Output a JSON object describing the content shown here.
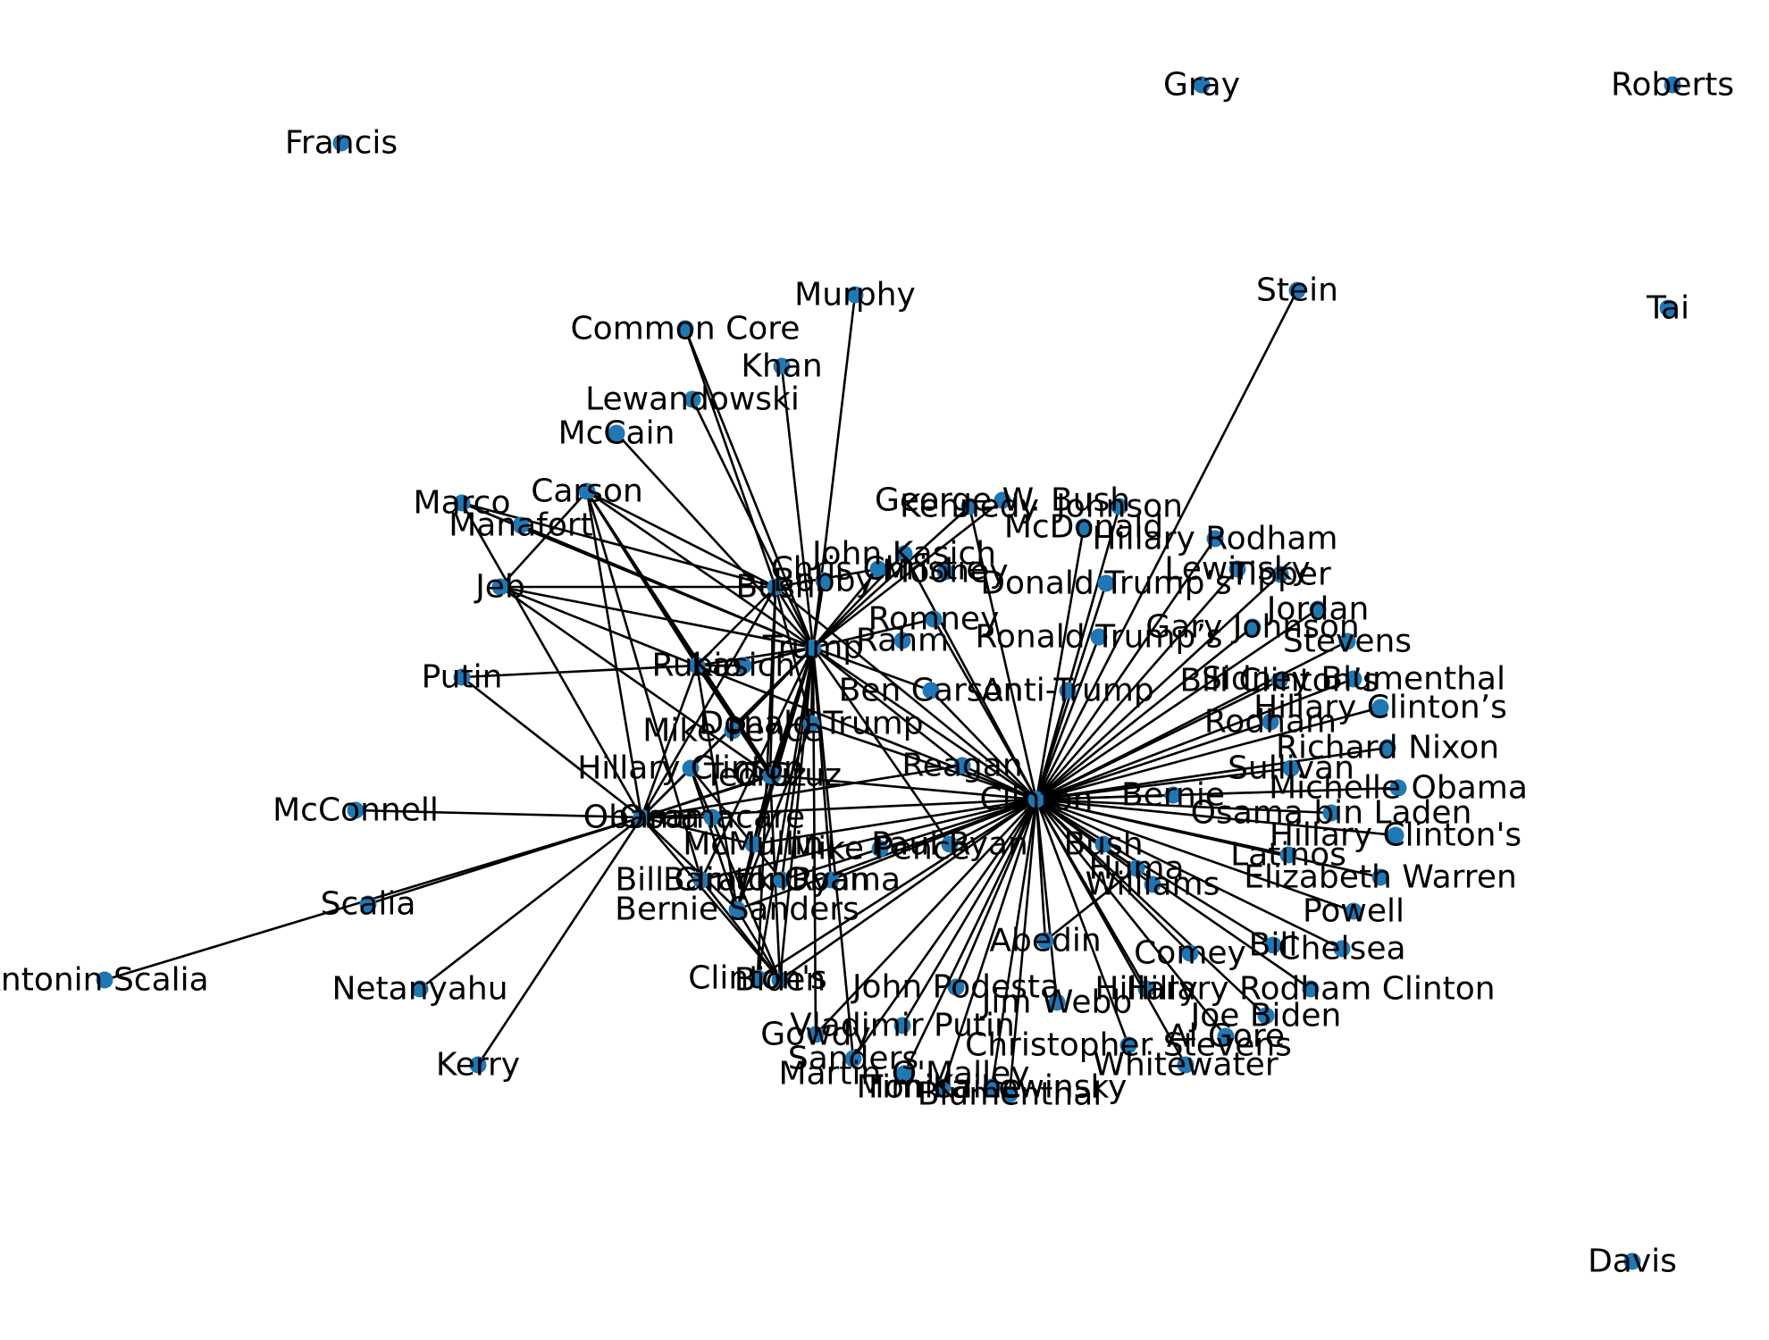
{
  "colors": {
    "node": "#1f77b4",
    "edge": "#000000",
    "text": "#000000"
  },
  "nodes": [
    {
      "id": "Clinton",
      "label": "Clinton"
    },
    {
      "id": "Trump",
      "label": "Trump"
    },
    {
      "id": "Obama",
      "label": "Obama"
    },
    {
      "id": "Bush",
      "label": "Bush"
    },
    {
      "id": "Rubio",
      "label": "Rubio"
    },
    {
      "id": "Cruz",
      "label": "Cruz"
    },
    {
      "id": "Carson",
      "label": "Carson"
    },
    {
      "id": "Kasich",
      "label": "Kasich"
    },
    {
      "id": "Marco",
      "label": "Marco"
    },
    {
      "id": "Manafort",
      "label": "Manafort"
    },
    {
      "id": "Jeb",
      "label": "Jeb"
    },
    {
      "id": "Putin",
      "label": "Putin"
    },
    {
      "id": "McConnell",
      "label": "McConnell"
    },
    {
      "id": "Scalia",
      "label": "Scalia"
    },
    {
      "id": "Antonin Scalia",
      "label": "Antonin Scalia"
    },
    {
      "id": "Netanyahu",
      "label": "Netanyahu"
    },
    {
      "id": "Kerry",
      "label": "Kerry"
    },
    {
      "id": "Francis",
      "label": "Francis"
    },
    {
      "id": "Gray",
      "label": "Gray"
    },
    {
      "id": "Roberts",
      "label": "Roberts"
    },
    {
      "id": "Tai",
      "label": "Tai"
    },
    {
      "id": "Davis",
      "label": "Davis"
    },
    {
      "id": "Stein",
      "label": "Stein"
    },
    {
      "id": "Murphy",
      "label": "Murphy"
    },
    {
      "id": "Common Core",
      "label": "Common Core"
    },
    {
      "id": "Khan",
      "label": "Khan"
    },
    {
      "id": "Lewandowski",
      "label": "Lewandowski"
    },
    {
      "id": "McCain",
      "label": "McCain"
    },
    {
      "id": "George W. Bush",
      "label": "George W. Bush"
    },
    {
      "id": "Kennedy",
      "label": "Kennedy"
    },
    {
      "id": "Johnson",
      "label": "Johnson"
    },
    {
      "id": "McDonald",
      "label": "McDonald"
    },
    {
      "id": "John Kasich",
      "label": "John Kasich"
    },
    {
      "id": "Chris Christie",
      "label": "Chris Christie"
    },
    {
      "id": "Bobby",
      "label": "Bobby"
    },
    {
      "id": "Mooney",
      "label": "Mooney"
    },
    {
      "id": "Hillary Rodham",
      "label": "Hillary Rodham"
    },
    {
      "id": "Lewinsky",
      "label": "Lewinsky"
    },
    {
      "id": "Tipper",
      "label": "Tipper"
    },
    {
      "id": "Donald Trump's",
      "label": "Donald Trump’s"
    },
    {
      "id": "Jordan",
      "label": "Jordan"
    },
    {
      "id": "Gary Johnson",
      "label": "Gary Johnson"
    },
    {
      "id": "Stevens",
      "label": "Stevens"
    },
    {
      "id": "Romney",
      "label": "Romney"
    },
    {
      "id": "Rahm",
      "label": "Rahm"
    },
    {
      "id": "Ronald Trump's",
      "label": "Ronald Trump’s"
    },
    {
      "id": "Ben Carson",
      "label": "Ben Carson"
    },
    {
      "id": "Anti-Trump",
      "label": "Anti-Trump"
    },
    {
      "id": "Bill Clinton's",
      "label": "Bill Clinton’s"
    },
    {
      "id": "Sidney Blumenthal",
      "label": "Sidney Blumenthal"
    },
    {
      "id": "Hillary Clinton's A",
      "label": "Hillary Clinton’s"
    },
    {
      "id": "Rodham",
      "label": "Rodham"
    },
    {
      "id": "Richard Nixon",
      "label": "Richard Nixon"
    },
    {
      "id": "Sullivan",
      "label": "Sullivan"
    },
    {
      "id": "Bernie",
      "label": "Bernie"
    },
    {
      "id": "Michelle Obama",
      "label": "Michelle Obama"
    },
    {
      "id": "Osama bin Laden",
      "label": "Osama bin Laden"
    },
    {
      "id": "Hillary Clinton's B",
      "label": "Hillary Clinton's"
    },
    {
      "id": "Latinos",
      "label": "Latinos"
    },
    {
      "id": "Huma",
      "label": "Huma"
    },
    {
      "id": "Williams",
      "label": "Williams"
    },
    {
      "id": "Elizabeth Warren",
      "label": "Elizabeth Warren"
    },
    {
      "id": "Powell",
      "label": "Powell"
    },
    {
      "id": "Bill",
      "label": "Bill"
    },
    {
      "id": "Chelsea",
      "label": "Chelsea"
    },
    {
      "id": "Comey",
      "label": "Comey"
    },
    {
      "id": "Abedin",
      "label": "Abedin"
    },
    {
      "id": "Hillary Rodham Clinton",
      "label": "Hillary Rodham Clinton"
    },
    {
      "id": "John Podesta",
      "label": "John Podesta"
    },
    {
      "id": "Hillary",
      "label": "Hillary"
    },
    {
      "id": "Jim Webb",
      "label": "Jim Webb"
    },
    {
      "id": "Joe Biden",
      "label": "Joe Biden"
    },
    {
      "id": "Al Gore",
      "label": "Al Gore"
    },
    {
      "id": "Christopher Stevens",
      "label": "Christopher Stevens"
    },
    {
      "id": "Whitewater",
      "label": "Whitewater"
    },
    {
      "id": "Vladimir Putin",
      "label": "Vladimir Putin"
    },
    {
      "id": "Gowdy",
      "label": "Gowdy"
    },
    {
      "id": "Sanders",
      "label": "Sanders"
    },
    {
      "id": "Martin O'Malley",
      "label": "Martin O'Malley"
    },
    {
      "id": "Tim Kaine",
      "label": "Tim Kaine"
    },
    {
      "id": "Monica Lewinsky",
      "label": "Monica Lewinsky"
    },
    {
      "id": "Blumenthal",
      "label": "Blumenthal"
    },
    {
      "id": "Biden",
      "label": "Biden"
    },
    {
      "id": "Clinton's",
      "label": "Clinton's"
    },
    {
      "id": "Bernie Sanders",
      "label": "Bernie Sanders"
    },
    {
      "id": "Bill Clinton",
      "label": "Bill Clinton"
    },
    {
      "id": "Barack Obama",
      "label": "Barack Obama"
    },
    {
      "id": "Ryan",
      "label": "Ryan"
    },
    {
      "id": "McMullin",
      "label": "McMullin"
    },
    {
      "id": "Mike Pence",
      "label": "Mike Pence"
    },
    {
      "id": "Paul Ryan",
      "label": "Paul Ryan"
    },
    {
      "id": "Hillary Clinton",
      "label": "Hillary Clinton"
    },
    {
      "id": "Ted Cruz",
      "label": "Ted Cruz"
    },
    {
      "id": "Donald Trump",
      "label": "Donald Trump"
    },
    {
      "id": "Mike Pence 2",
      "label": "Mike Pence"
    },
    {
      "id": "Reagan",
      "label": "Reagan"
    },
    {
      "id": "Bush Sr",
      "label": "Bush"
    },
    {
      "id": "Obamacare",
      "label": "Obamacare"
    }
  ],
  "edges": [
    [
      "Clinton",
      "Trump"
    ],
    [
      "Clinton",
      "Stein"
    ],
    [
      "Clinton",
      "Hillary Rodham"
    ],
    [
      "Clinton",
      "Lewinsky"
    ],
    [
      "Clinton",
      "Tipper"
    ],
    [
      "Clinton",
      "Donald Trump's"
    ],
    [
      "Clinton",
      "Jordan"
    ],
    [
      "Clinton",
      "Gary Johnson"
    ],
    [
      "Clinton",
      "Stevens"
    ],
    [
      "Clinton",
      "Bill Clinton's"
    ],
    [
      "Clinton",
      "Sidney Blumenthal"
    ],
    [
      "Clinton",
      "Hillary Clinton's A"
    ],
    [
      "Clinton",
      "Rodham"
    ],
    [
      "Clinton",
      "Richard Nixon"
    ],
    [
      "Clinton",
      "Sullivan"
    ],
    [
      "Clinton",
      "Bernie"
    ],
    [
      "Clinton",
      "Michelle Obama"
    ],
    [
      "Clinton",
      "Osama bin Laden"
    ],
    [
      "Clinton",
      "Hillary Clinton's B"
    ],
    [
      "Clinton",
      "Latinos"
    ],
    [
      "Clinton",
      "Huma"
    ],
    [
      "Clinton",
      "Williams"
    ],
    [
      "Clinton",
      "Elizabeth Warren"
    ],
    [
      "Clinton",
      "Powell"
    ],
    [
      "Clinton",
      "Bill"
    ],
    [
      "Clinton",
      "Chelsea"
    ],
    [
      "Clinton",
      "Comey"
    ],
    [
      "Clinton",
      "Abedin"
    ],
    [
      "Clinton",
      "Hillary Rodham Clinton"
    ],
    [
      "Clinton",
      "John Podesta"
    ],
    [
      "Clinton",
      "Hillary"
    ],
    [
      "Clinton",
      "Jim Webb"
    ],
    [
      "Clinton",
      "Joe Biden"
    ],
    [
      "Clinton",
      "Al Gore"
    ],
    [
      "Clinton",
      "Christopher Stevens"
    ],
    [
      "Clinton",
      "Whitewater"
    ],
    [
      "Clinton",
      "Vladimir Putin"
    ],
    [
      "Clinton",
      "Gowdy"
    ],
    [
      "Clinton",
      "Sanders"
    ],
    [
      "Clinton",
      "Martin O'Malley"
    ],
    [
      "Clinton",
      "Tim Kaine"
    ],
    [
      "Clinton",
      "Monica Lewinsky"
    ],
    [
      "Clinton",
      "Blumenthal"
    ],
    [
      "Clinton",
      "Biden"
    ],
    [
      "Clinton",
      "Bernie Sanders"
    ],
    [
      "Clinton",
      "Obama"
    ],
    [
      "Clinton",
      "Bush"
    ],
    [
      "Clinton",
      "Rubio"
    ],
    [
      "Clinton",
      "Ben Carson"
    ],
    [
      "Clinton",
      "Anti-Trump"
    ],
    [
      "Clinton",
      "Reagan"
    ],
    [
      "Clinton",
      "Paul Ryan"
    ],
    [
      "Clinton",
      "Barack Obama"
    ],
    [
      "Clinton",
      "Romney"
    ],
    [
      "Clinton",
      "Ronald Trump's"
    ],
    [
      "Clinton",
      "Johnson"
    ],
    [
      "Clinton",
      "McDonald"
    ],
    [
      "Clinton",
      "John Kasich"
    ],
    [
      "Clinton",
      "Kennedy"
    ],
    [
      "Clinton",
      "Clinton's"
    ],
    [
      "Clinton",
      "Donald Trump"
    ],
    [
      "Clinton",
      "McMullin"
    ],
    [
      "Clinton",
      "Ted Cruz"
    ],
    [
      "Clinton",
      "Bill Clinton"
    ],
    [
      "Clinton",
      "Ryan"
    ],
    [
      "Huma",
      "Abedin"
    ],
    [
      "Trump",
      "Murphy"
    ],
    [
      "Trump",
      "Common Core"
    ],
    [
      "Trump",
      "Khan"
    ],
    [
      "Trump",
      "Lewandowski"
    ],
    [
      "Trump",
      "McCain"
    ],
    [
      "Trump",
      "Carson"
    ],
    [
      "Trump",
      "Marco"
    ],
    [
      "Trump",
      "Manafort"
    ],
    [
      "Trump",
      "Jeb"
    ],
    [
      "Trump",
      "Rubio"
    ],
    [
      "Trump",
      "Obama"
    ],
    [
      "Trump",
      "Bush"
    ],
    [
      "Trump",
      "Cruz"
    ],
    [
      "Trump",
      "Hillary Clinton"
    ],
    [
      "Trump",
      "Ted Cruz"
    ],
    [
      "Trump",
      "Bernie Sanders"
    ],
    [
      "Trump",
      "Clinton's"
    ],
    [
      "Trump",
      "Biden"
    ],
    [
      "Trump",
      "Bill Clinton"
    ],
    [
      "Trump",
      "Barack Obama"
    ],
    [
      "Trump",
      "Ryan"
    ],
    [
      "Trump",
      "Mike Pence"
    ],
    [
      "Trump",
      "Donald Trump"
    ],
    [
      "Trump",
      "Paul Ryan"
    ],
    [
      "Trump",
      "Ben Carson"
    ],
    [
      "Trump",
      "Romney"
    ],
    [
      "Trump",
      "Chris Christie"
    ],
    [
      "Trump",
      "Bobby"
    ],
    [
      "Trump",
      "John Kasich"
    ],
    [
      "Trump",
      "Kasich"
    ],
    [
      "Trump",
      "Reagan"
    ],
    [
      "Trump",
      "Sanders"
    ],
    [
      "Trump",
      "Gowdy"
    ],
    [
      "Trump",
      "McMullin"
    ],
    [
      "Trump",
      "Kennedy"
    ],
    [
      "Trump",
      "George W. Bush"
    ],
    [
      "Obama",
      "McConnell"
    ],
    [
      "Obama",
      "Scalia"
    ],
    [
      "Obama",
      "Antonin Scalia"
    ],
    [
      "Obama",
      "Netanyahu"
    ],
    [
      "Obama",
      "Kerry"
    ],
    [
      "Obama",
      "Putin"
    ],
    [
      "Obama",
      "Carson"
    ],
    [
      "Obama",
      "Bush"
    ],
    [
      "Obama",
      "Rubio"
    ],
    [
      "Obama",
      "Cruz"
    ],
    [
      "Obama",
      "Biden"
    ],
    [
      "Obama",
      "Bernie Sanders"
    ],
    [
      "Obama",
      "Hillary Clinton"
    ],
    [
      "Obama",
      "Ted Cruz"
    ],
    [
      "Obama",
      "Obamacare"
    ],
    [
      "Obama",
      "Marco"
    ],
    [
      "Obama",
      "Reagan"
    ],
    [
      "Obama",
      "McMullin"
    ],
    [
      "Bush",
      "Jeb"
    ],
    [
      "Bush",
      "Carson"
    ],
    [
      "Bush",
      "Marco"
    ],
    [
      "Bush",
      "Rubio"
    ],
    [
      "Bush",
      "Cruz"
    ],
    [
      "Bush",
      "Common Core"
    ],
    [
      "Bush",
      "Donald Trump"
    ],
    [
      "Bush",
      "Clinton's"
    ],
    [
      "Bush",
      "Chris Christie"
    ],
    [
      "Rubio",
      "Putin"
    ],
    [
      "Rubio",
      "Jeb"
    ],
    [
      "Rubio",
      "Carson"
    ],
    [
      "Rubio",
      "Cruz"
    ],
    [
      "Rubio",
      "Ted Cruz"
    ],
    [
      "Rubio",
      "Kasich"
    ],
    [
      "Rubio",
      "Bernie Sanders"
    ],
    [
      "Cruz",
      "Carson"
    ],
    [
      "Cruz",
      "Jeb"
    ],
    [
      "Cruz",
      "Bernie Sanders"
    ],
    [
      "Cruz",
      "Biden"
    ],
    [
      "Carson",
      "Bill Clinton"
    ],
    [
      "Carson",
      "Jeb"
    ],
    [
      "Carson",
      "Ted Cruz"
    ],
    [
      "Hillary Clinton",
      "Bernie Sanders"
    ],
    [
      "Hillary Clinton",
      "Biden"
    ],
    [
      "Hillary Clinton",
      "Barack Obama"
    ],
    [
      "Bernie Sanders",
      "Biden"
    ],
    [
      "Bill Clinton",
      "Biden"
    ],
    [
      "Donald Trump",
      "Bernie Sanders"
    ]
  ]
}
